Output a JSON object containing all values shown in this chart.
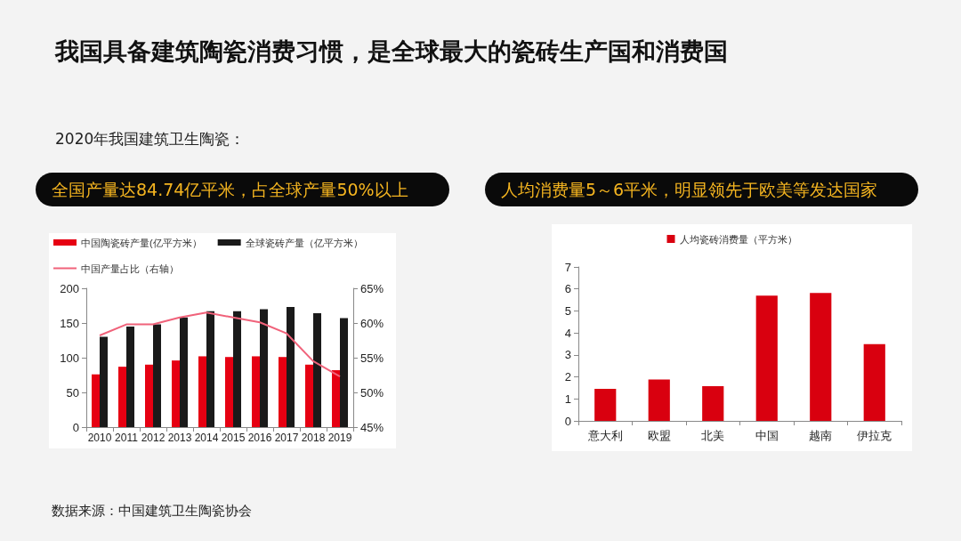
{
  "chart_data": [
    {
      "type": "bar",
      "title": "我国具备建筑陶瓷消费习惯，是全球最大的瓷砖生产国和消费国",
      "subtitle": "2020年我国建筑卫生陶瓷：",
      "annotations": [
        "全国产量达84.74亿平米，占全球产量50%以上",
        "数据来源：中国建筑卫生陶瓷协会"
      ],
      "categories": [
        "2010",
        "2011",
        "2012",
        "2013",
        "2014",
        "2015",
        "2016",
        "2017",
        "2018",
        "2019"
      ],
      "series": [
        {
          "name": "中国陶瓷砖产量(亿平方米）",
          "color": "#e60012",
          "values": [
            76,
            87,
            90,
            96,
            102,
            101,
            102,
            101,
            90,
            82
          ]
        },
        {
          "name": "全球瓷砖产量（亿平方米）",
          "color": "#1a1a1a",
          "values": [
            130,
            145,
            148,
            158,
            167,
            167,
            170,
            173,
            164,
            157
          ]
        },
        {
          "name": "中国产量占比（右轴）",
          "type": "line",
          "axis": "y2",
          "color": "#f0627a",
          "values": [
            58.2,
            59.8,
            59.8,
            60.8,
            61.5,
            60.8,
            60.1,
            58.5,
            54.5,
            52.3
          ]
        }
      ],
      "ylim": [
        0,
        200
      ],
      "yticks": [
        0,
        50,
        100,
        150,
        200
      ],
      "y2lim": [
        45,
        65
      ],
      "y2ticks": [
        {
          "value": 45,
          "label": "45%"
        },
        {
          "value": 50,
          "label": "50%"
        },
        {
          "value": 55,
          "label": "55%"
        },
        {
          "value": 60,
          "label": "60%"
        },
        {
          "value": 65,
          "label": "65%"
        }
      ],
      "grid": false,
      "legend": "top left",
      "marker": "none",
      "line_style": "solid"
    },
    {
      "type": "bar",
      "annotations": [
        "人均消费量5～6平米，明显领先于欧美等发达国家"
      ],
      "categories": [
        "意大利",
        "欧盟",
        "北美",
        "中国",
        "越南",
        "伊拉克"
      ],
      "series": [
        {
          "name": "人均瓷砖消费量（平方米）",
          "color": "#d9000f",
          "values": [
            1.46,
            1.88,
            1.58,
            5.7,
            5.82,
            3.49
          ]
        }
      ],
      "ylim": [
        0,
        7
      ],
      "yticks": [
        0,
        1,
        2,
        3,
        4,
        5,
        6,
        7
      ],
      "grid": false,
      "legend": "top"
    }
  ]
}
